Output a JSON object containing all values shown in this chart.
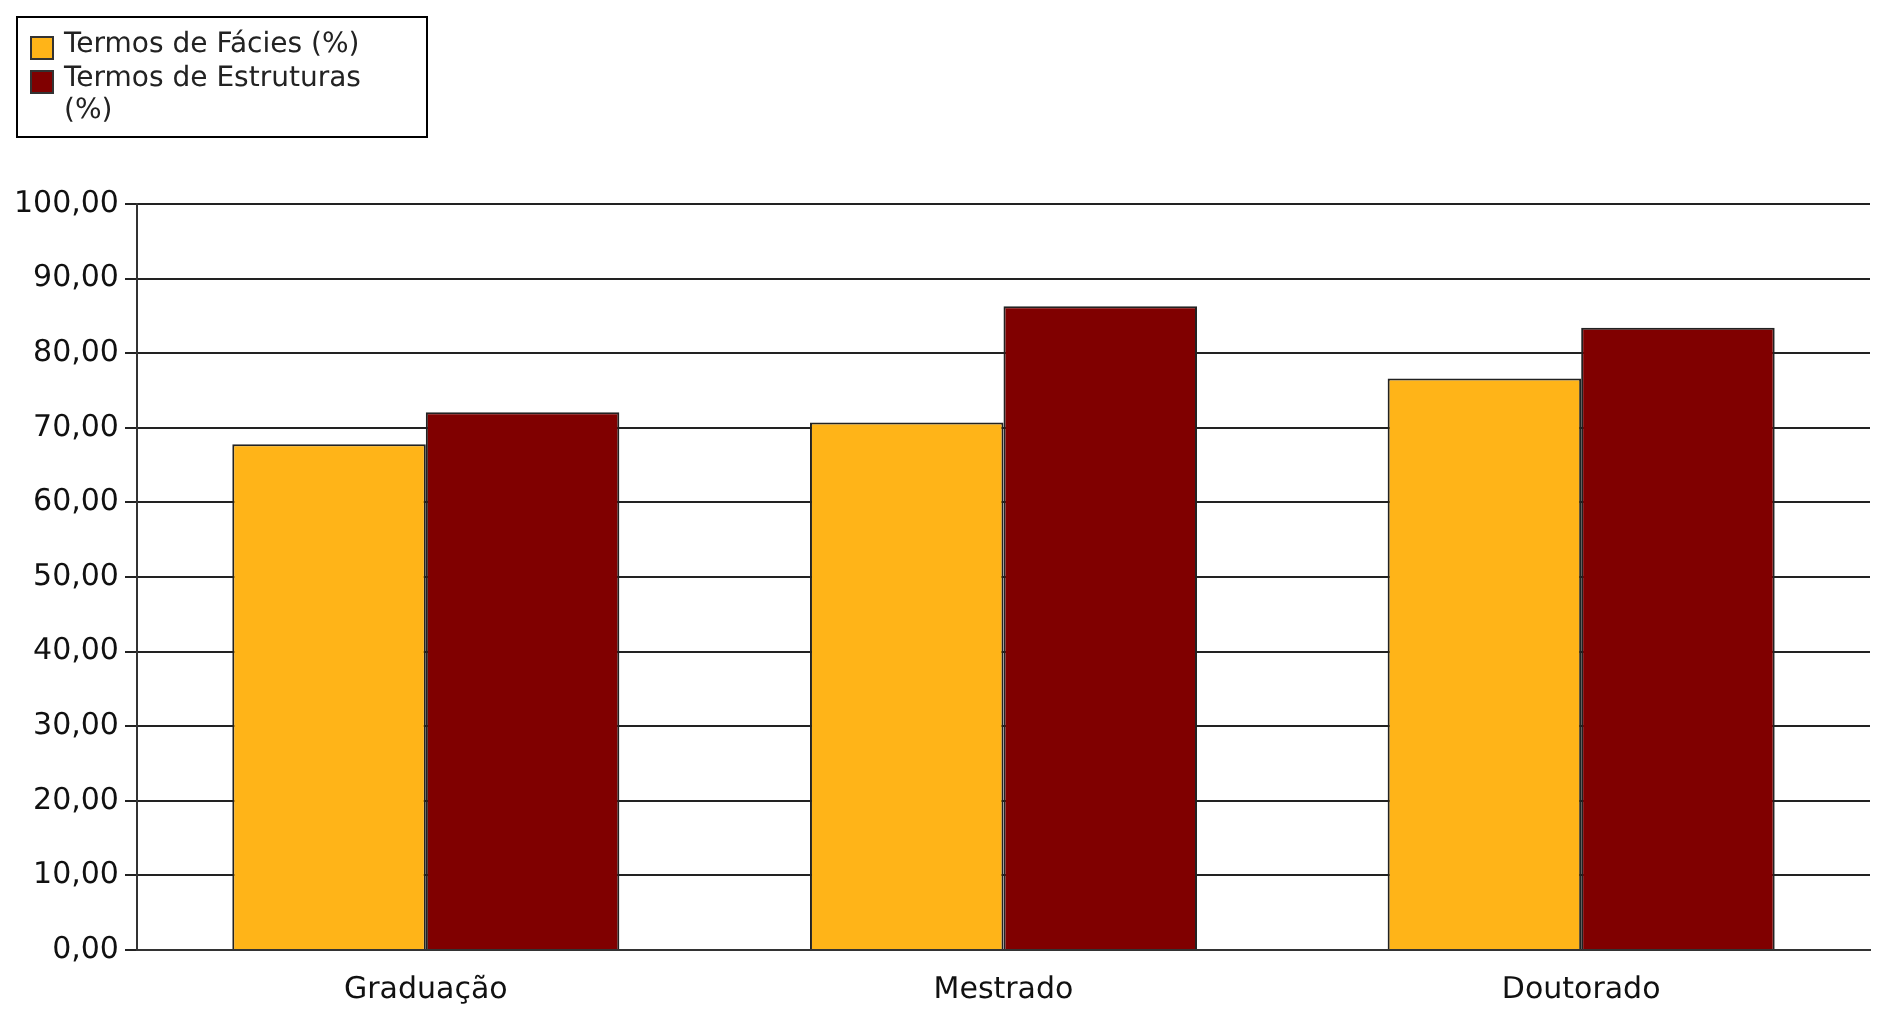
{
  "chart_data": {
    "type": "bar",
    "categories": [
      "Graduação",
      "Mestrado",
      "Doutorado"
    ],
    "series": [
      {
        "name": "Termos de Fácies (%)",
        "color": "#ffb418",
        "values": [
          67.8,
          70.7,
          76.6
        ]
      },
      {
        "name": "Termos de Estruturas (%)",
        "color": "#800000",
        "values": [
          72.1,
          86.3,
          83.4
        ]
      }
    ],
    "ylim": [
      0,
      100
    ],
    "yticks": [
      {
        "value": 0,
        "label": "0,00"
      },
      {
        "value": 10,
        "label": "10,00"
      },
      {
        "value": 20,
        "label": "20,00"
      },
      {
        "value": 30,
        "label": "30,00"
      },
      {
        "value": 40,
        "label": "40,00"
      },
      {
        "value": 50,
        "label": "50,00"
      },
      {
        "value": 60,
        "label": "60,00"
      },
      {
        "value": 70,
        "label": "70,00"
      },
      {
        "value": 80,
        "label": "80,00"
      },
      {
        "value": 90,
        "label": "90,00"
      },
      {
        "value": 100,
        "label": "100,00"
      }
    ],
    "grid": "y",
    "legend": "top left"
  }
}
